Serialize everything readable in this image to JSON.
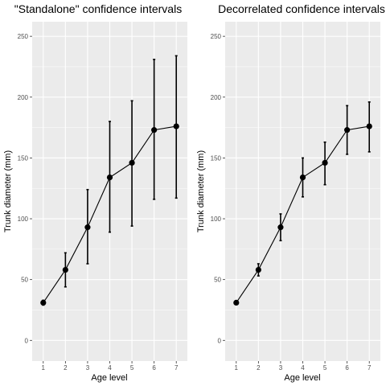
{
  "chart_data": [
    {
      "type": "line",
      "title": "\"Standalone\" confidence intervals",
      "xlabel": "Age level",
      "ylabel": "Trunk diameter (mm)",
      "x": [
        1,
        2,
        3,
        4,
        5,
        6,
        7
      ],
      "values": [
        31,
        58,
        93,
        134,
        146,
        173,
        176
      ],
      "lower": [
        29,
        44,
        63,
        89,
        94,
        116,
        117
      ],
      "upper": [
        33,
        72,
        124,
        180,
        197,
        231,
        234
      ],
      "x_ticks": [
        "1",
        "2",
        "3",
        "4",
        "5",
        "6",
        "7"
      ],
      "y_ticks": [
        0,
        50,
        100,
        150,
        200,
        250
      ],
      "ylim": [
        -17,
        262
      ],
      "xlim": [
        0.5,
        7.5
      ],
      "grid": true,
      "error_bars": true
    },
    {
      "type": "line",
      "title": "Decorrelated confidence intervals",
      "xlabel": "Age level",
      "ylabel": "Trunk diameter (mm)",
      "x": [
        1,
        2,
        3,
        4,
        5,
        6,
        7
      ],
      "values": [
        31,
        58,
        93,
        134,
        146,
        173,
        176
      ],
      "lower": [
        31,
        53,
        82,
        118,
        128,
        153,
        155
      ],
      "upper": [
        31,
        63,
        104,
        150,
        163,
        193,
        196
      ],
      "x_ticks": [
        "1",
        "2",
        "3",
        "4",
        "5",
        "6",
        "7"
      ],
      "y_ticks": [
        0,
        50,
        100,
        150,
        200,
        250
      ],
      "ylim": [
        -17,
        262
      ],
      "xlim": [
        0.5,
        7.5
      ],
      "grid": true,
      "error_bars": true
    }
  ]
}
